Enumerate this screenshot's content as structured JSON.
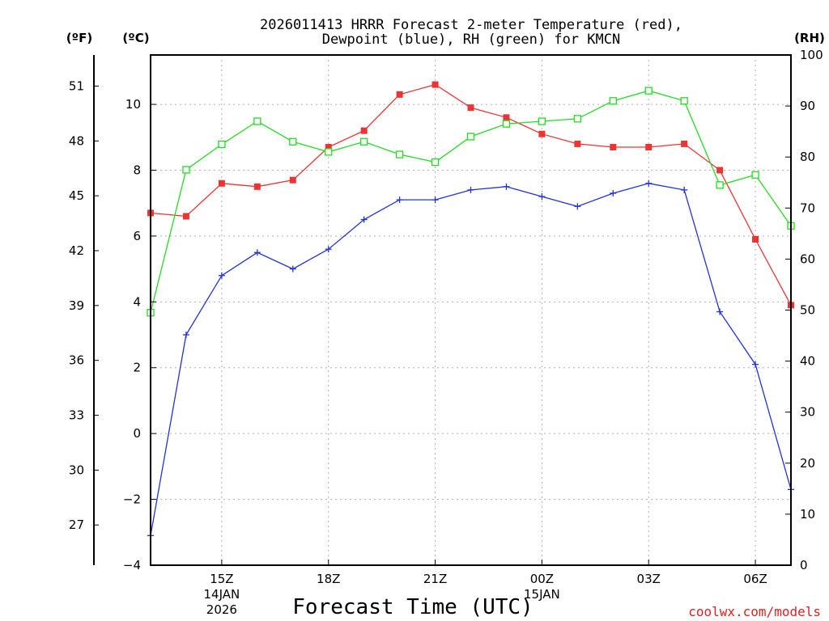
{
  "chart_data": {
    "type": "line",
    "title_line1": "2026011413 HRRR Forecast 2-meter Temperature (red),",
    "title_line2": "Dewpoint (blue), RH (green) for KMCN",
    "xlabel": "Forecast Time (UTC)",
    "credit": "coolwx.com/models",
    "left_outer_axis": {
      "unit": "(ºF)",
      "ticks": [
        "27",
        "30",
        "33",
        "36",
        "39",
        "42",
        "45",
        "48",
        "51"
      ]
    },
    "left_axis": {
      "unit": "(ºC)",
      "ylim": [
        -4,
        11.5
      ],
      "ticks": [
        "-4",
        "-2",
        "0",
        "2",
        "4",
        "6",
        "8",
        "10"
      ]
    },
    "right_axis": {
      "unit": "(RH)",
      "ylim": [
        0,
        100
      ],
      "ticks": [
        "0",
        "10",
        "20",
        "30",
        "40",
        "50",
        "60",
        "70",
        "80",
        "90",
        "100"
      ]
    },
    "x": [
      13,
      14,
      15,
      16,
      17,
      18,
      19,
      20,
      21,
      22,
      23,
      24,
      25,
      26,
      27,
      28,
      29,
      30,
      31
    ],
    "x_ticks": [
      {
        "hour": 15,
        "label": "15Z",
        "sub1": "14JAN",
        "sub2": "2026"
      },
      {
        "hour": 18,
        "label": "18Z",
        "sub1": "",
        "sub2": ""
      },
      {
        "hour": 21,
        "label": "21Z",
        "sub1": "",
        "sub2": ""
      },
      {
        "hour": 24,
        "label": "00Z",
        "sub1": "15JAN",
        "sub2": ""
      },
      {
        "hour": 27,
        "label": "03Z",
        "sub1": "",
        "sub2": ""
      },
      {
        "hour": 30,
        "label": "06Z",
        "sub1": "",
        "sub2": ""
      }
    ],
    "series": [
      {
        "name": "Temperature",
        "axis": "C",
        "color": "#ee3333",
        "marker": "filled-square",
        "values": [
          6.7,
          6.6,
          7.6,
          7.5,
          7.7,
          8.7,
          9.2,
          10.3,
          10.6,
          9.9,
          9.6,
          9.1,
          8.8,
          8.7,
          8.7,
          8.8,
          8.0,
          5.9,
          3.9
        ]
      },
      {
        "name": "Dewpoint",
        "axis": "C",
        "color": "#2233dd",
        "marker": "plus",
        "values": [
          -3.1,
          3.0,
          4.8,
          5.5,
          5.0,
          5.6,
          6.5,
          7.1,
          7.1,
          7.4,
          7.5,
          7.2,
          6.9,
          7.3,
          7.6,
          7.4,
          3.7,
          2.1,
          -1.7
        ]
      },
      {
        "name": "RH",
        "axis": "RH",
        "color": "#22dd22",
        "marker": "open-square",
        "values": [
          49.5,
          77.5,
          82.5,
          87,
          83,
          81,
          83,
          80.5,
          79,
          84,
          86.5,
          87,
          87.5,
          91,
          93,
          91,
          74.5,
          76.5,
          66.5
        ]
      }
    ]
  }
}
